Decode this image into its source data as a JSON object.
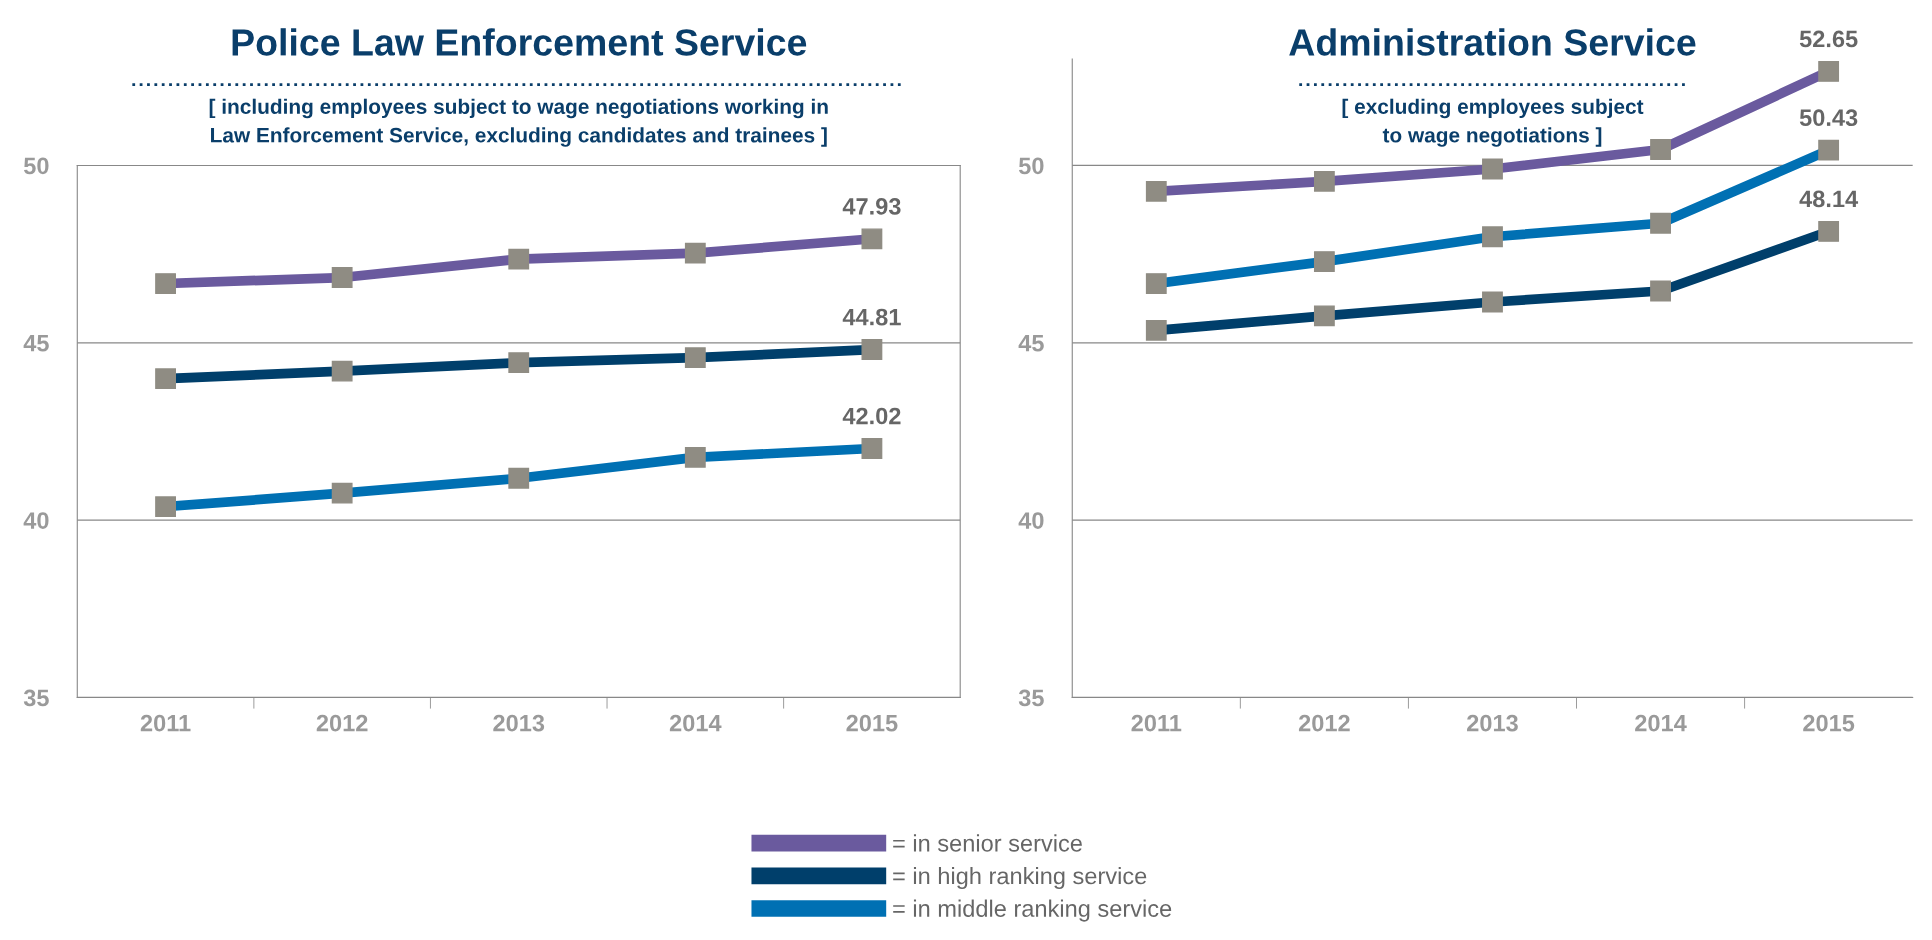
{
  "chart_data": [
    {
      "type": "line",
      "title": "Police Law Enforcement Service",
      "subtitle": "[ including employees subject to wage negotiations working in\nLaw Enforcement Service, excluding candidates and trainees ]",
      "categories": [
        "2011",
        "2012",
        "2013",
        "2014",
        "2015"
      ],
      "ylim": [
        35,
        50
      ],
      "yticks": [
        35,
        40,
        45,
        50
      ],
      "grid": "y",
      "marker": "square",
      "legend": "bottom",
      "series": [
        {
          "name": "= in senior service",
          "color": "#6a5a9e",
          "values": [
            46.67,
            46.84,
            47.36,
            47.53,
            47.93
          ],
          "value_labels": [
            null,
            null,
            null,
            null,
            "47.93"
          ]
        },
        {
          "name": "= in high ranking service",
          "color": "#003f6b",
          "values": [
            43.99,
            44.2,
            44.44,
            44.58,
            44.81
          ],
          "value_labels": [
            null,
            null,
            null,
            null,
            "44.81"
          ]
        },
        {
          "name": "= in middle ranking service",
          "color": "#0070b3",
          "values": [
            40.38,
            40.76,
            41.18,
            41.77,
            42.02
          ],
          "value_labels": [
            null,
            null,
            null,
            null,
            "42.02"
          ]
        }
      ]
    },
    {
      "type": "line",
      "title": "Administration Service",
      "subtitle": "[ excluding employees subject\nto wage negotiations ]",
      "categories": [
        "2011",
        "2012",
        "2013",
        "2014",
        "2015"
      ],
      "ylim": [
        35,
        53
      ],
      "yticks": [
        35,
        40,
        45,
        50
      ],
      "grid": "y",
      "marker": "square",
      "series": [
        {
          "color": "#6a5a9e",
          "values": [
            49.27,
            49.55,
            49.9,
            50.45,
            52.65
          ],
          "value_labels": [
            null,
            null,
            null,
            null,
            "52.65"
          ]
        },
        {
          "color": "#003f6b",
          "values": [
            45.35,
            45.76,
            46.15,
            46.46,
            48.14
          ],
          "value_labels": [
            null,
            null,
            null,
            null,
            "48.14"
          ]
        },
        {
          "color": "#0070b3",
          "values": [
            46.67,
            47.29,
            47.99,
            48.37,
            50.43
          ],
          "value_labels": [
            null,
            null,
            null,
            null,
            "50.43"
          ]
        }
      ]
    }
  ]
}
